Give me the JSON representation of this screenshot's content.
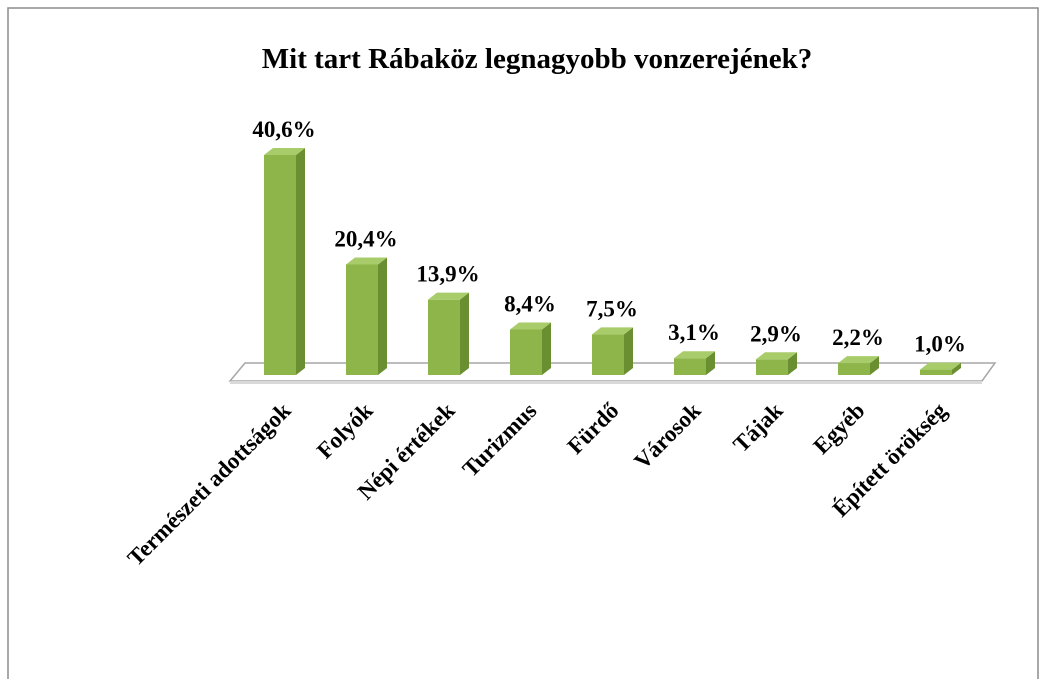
{
  "chart_data": {
    "type": "bar3d",
    "title": "Mit tart Rábaköz legnagyobb vonzerejének?",
    "categories": [
      "Természeti adottságok",
      "Folyók",
      "Népi értékek",
      "Turizmus",
      "Fürdő",
      "Városok",
      "Tájak",
      "Egyéb",
      "Épített örökség"
    ],
    "values": [
      40.6,
      20.4,
      13.9,
      8.4,
      7.5,
      3.1,
      2.9,
      2.2,
      1.0
    ],
    "value_labels": [
      "40,6%",
      "20,4%",
      "13,9%",
      "8,4%",
      "7,5%",
      "3,1%",
      "2,9%",
      "2,2%",
      "1,0%"
    ],
    "color": "#8db54a"
  }
}
